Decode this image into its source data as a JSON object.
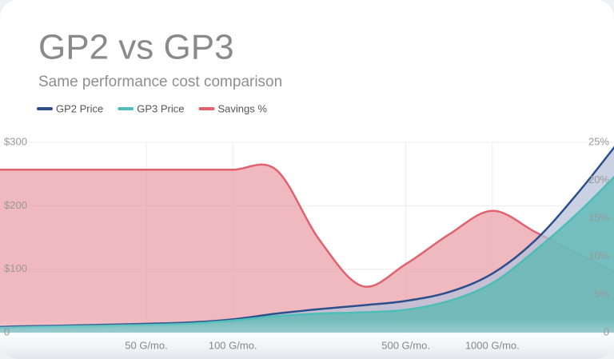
{
  "chart_data": {
    "type": "area",
    "title": "GP2 vs GP3",
    "subtitle": "Same performance cost comparison",
    "categories": [
      null,
      null,
      null,
      null,
      "50 G/mo.",
      null,
      "100 G/mo.",
      null,
      null,
      null,
      "500 G/mo.",
      null,
      "1000 G/mo.",
      null,
      null,
      null
    ],
    "series": [
      {
        "name": "GP2 Price",
        "color": "#2c4f8c",
        "values": [
          7.5,
          10,
          11,
          12.5,
          14,
          16,
          21,
          30,
          37,
          43,
          50,
          64,
          93,
          146,
          222,
          308
        ]
      },
      {
        "name": "GP3 Price",
        "color": "#4dbdb8",
        "values": [
          6,
          8,
          9.5,
          10.5,
          12,
          14,
          19,
          26,
          30,
          32,
          36,
          50,
          78,
          130,
          190,
          258
        ]
      },
      {
        "name": "Savings %",
        "color": "#e0626f",
        "axis": "y2",
        "values": [
          21.4,
          21.4,
          21.4,
          21.4,
          21.4,
          21.4,
          21.4,
          21.4,
          12.2,
          6.1,
          9,
          12.9,
          16,
          13.2,
          10.3,
          7.5
        ]
      }
    ],
    "ylim": [
      0,
      300
    ],
    "yticks": [
      0,
      {
        "value": 100,
        "label": "$100"
      },
      {
        "value": 200,
        "label": "$200"
      },
      {
        "value": 300,
        "label": "$300"
      }
    ],
    "y2lim": [
      0,
      25
    ],
    "y2ticks": [
      0,
      {
        "value": 5,
        "label": "5%"
      },
      {
        "value": 10,
        "label": "10%"
      },
      {
        "value": 15,
        "label": "15%"
      },
      {
        "value": 20,
        "label": "20%"
      },
      {
        "value": 25,
        "label": "25%"
      }
    ],
    "grid": true,
    "legend": "top-left"
  }
}
